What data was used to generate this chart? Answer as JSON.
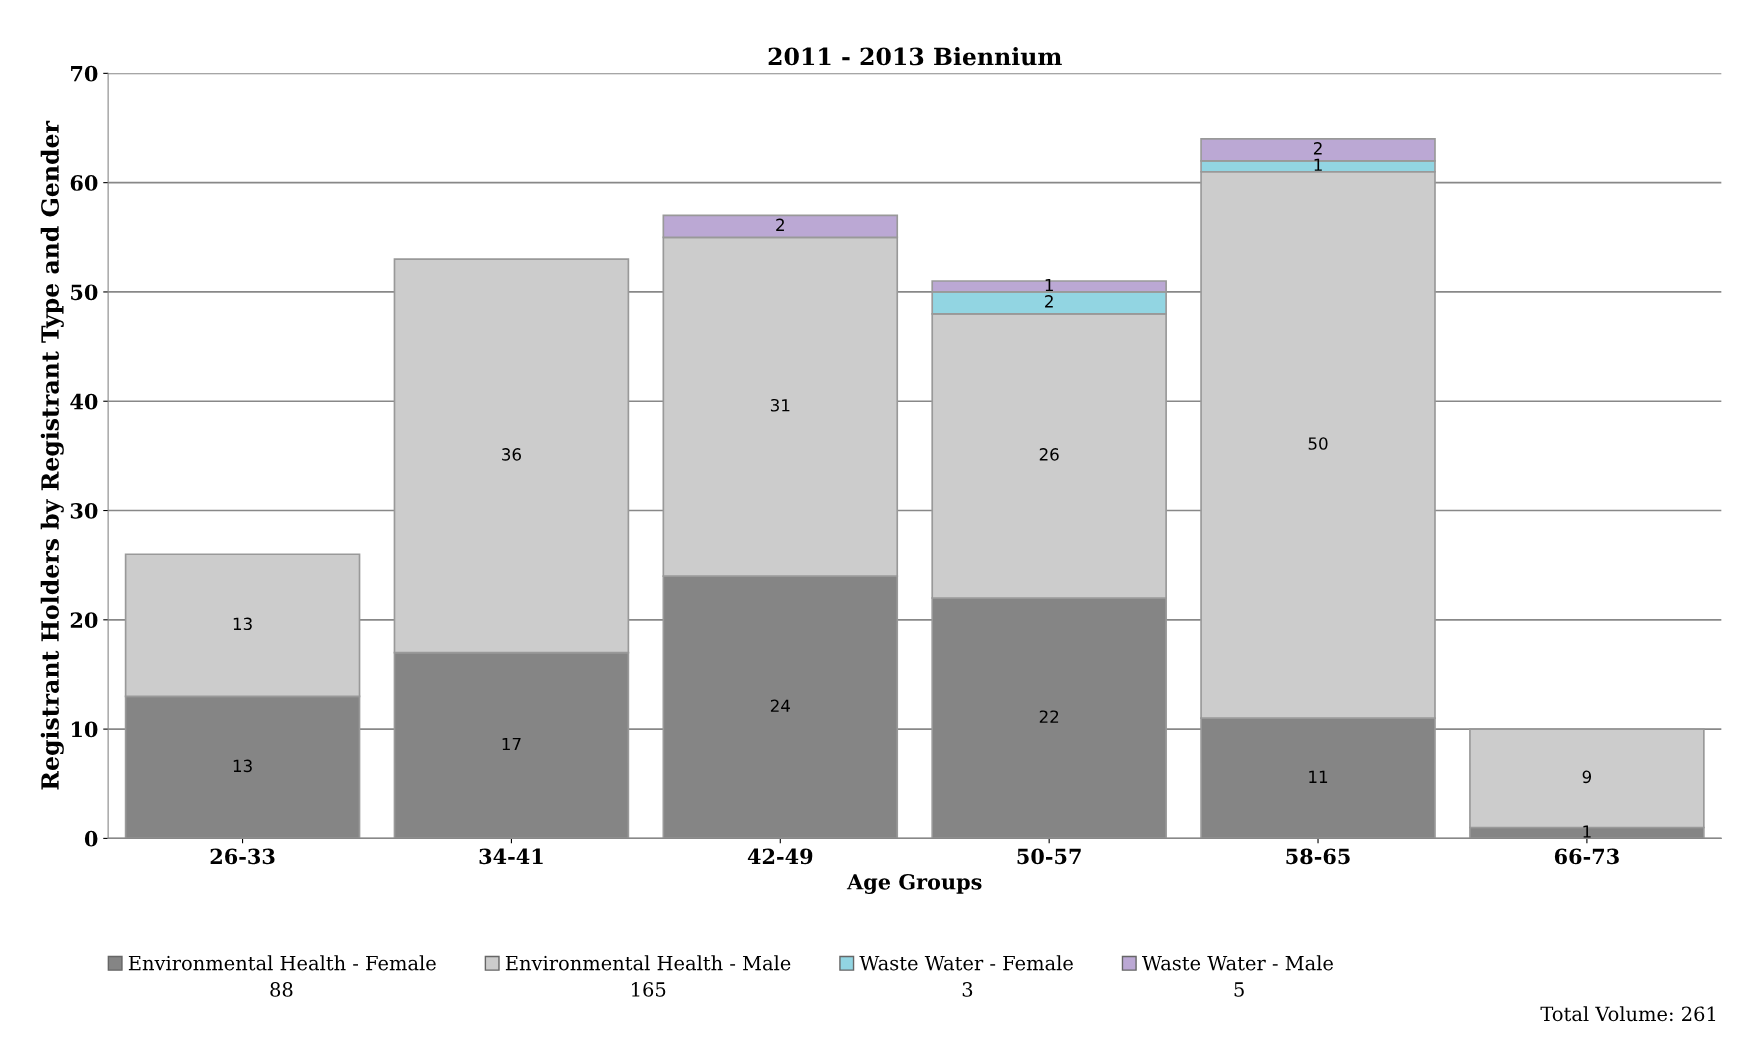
{
  "chart_data": {
    "type": "bar",
    "title": "2011 - 2013 Biennium",
    "xlabel": "Age Groups",
    "ylabel": "Registrant Holders by Registrant Type and Gender",
    "categories": [
      "26-33",
      "34-41",
      "42-49",
      "50-57",
      "58-65",
      "66-73"
    ],
    "series": [
      {
        "name": "Environmental Health - Female",
        "color": "#858585",
        "values": [
          13,
          17,
          24,
          22,
          11,
          1
        ]
      },
      {
        "name": "Environmental Health - Male",
        "color": "#cccccc",
        "values": [
          13,
          36,
          31,
          26,
          50,
          9
        ]
      },
      {
        "name": "Waste Water - Female",
        "color": "#92d5e2",
        "values": [
          null,
          null,
          null,
          2,
          1,
          null
        ]
      },
      {
        "name": "Waste Water - Male",
        "color": "#bba8d4",
        "values": [
          null,
          null,
          2,
          1,
          2,
          null
        ]
      }
    ],
    "stacked": true,
    "data_labels": true,
    "ylim": [
      0,
      70
    ],
    "yticks": [
      0,
      10,
      20,
      30,
      40,
      50,
      60,
      70
    ],
    "grid": "y",
    "legend": "bottom",
    "annotations": [
      "88",
      "165",
      "3",
      "5",
      "Total Volume: 261"
    ]
  }
}
